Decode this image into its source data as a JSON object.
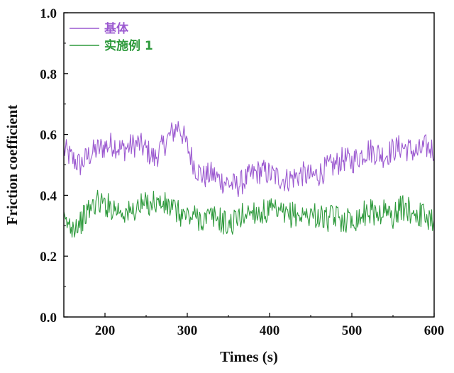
{
  "chart_data": {
    "type": "line",
    "xlabel": "Times (s)",
    "ylabel": "Friction coefficient",
    "xlim": [
      150,
      600
    ],
    "ylim": [
      0.0,
      1.0
    ],
    "x_ticks": [
      200,
      300,
      400,
      500,
      600
    ],
    "y_ticks": [
      0.0,
      0.2,
      0.4,
      0.6,
      0.8,
      1.0
    ],
    "x_tick_labels": [
      "200",
      "300",
      "400",
      "500",
      "600"
    ],
    "y_tick_labels": [
      "0.0",
      "0.2",
      "0.4",
      "0.6",
      "0.8",
      "1.0"
    ],
    "grid": false,
    "legend_position": "top-left",
    "x": [
      150,
      160,
      170,
      180,
      190,
      200,
      210,
      220,
      230,
      240,
      250,
      260,
      270,
      280,
      290,
      300,
      310,
      320,
      330,
      340,
      350,
      360,
      370,
      380,
      390,
      400,
      410,
      420,
      430,
      440,
      450,
      460,
      470,
      480,
      490,
      500,
      510,
      520,
      530,
      540,
      550,
      560,
      570,
      580,
      590,
      600
    ],
    "series": [
      {
        "name": "基体",
        "color": "#9b59d0",
        "values": [
          0.55,
          0.52,
          0.5,
          0.53,
          0.55,
          0.56,
          0.57,
          0.55,
          0.56,
          0.57,
          0.55,
          0.52,
          0.56,
          0.6,
          0.63,
          0.56,
          0.49,
          0.46,
          0.47,
          0.45,
          0.44,
          0.43,
          0.45,
          0.47,
          0.48,
          0.47,
          0.46,
          0.45,
          0.46,
          0.47,
          0.46,
          0.47,
          0.49,
          0.5,
          0.52,
          0.51,
          0.53,
          0.55,
          0.54,
          0.53,
          0.55,
          0.56,
          0.55,
          0.54,
          0.56,
          0.55
        ]
      },
      {
        "name": "实施例 1",
        "color": "#2e9a3c",
        "values": [
          0.31,
          0.3,
          0.31,
          0.35,
          0.38,
          0.37,
          0.36,
          0.35,
          0.34,
          0.36,
          0.37,
          0.38,
          0.37,
          0.36,
          0.34,
          0.33,
          0.33,
          0.32,
          0.33,
          0.32,
          0.3,
          0.32,
          0.34,
          0.35,
          0.34,
          0.35,
          0.34,
          0.33,
          0.34,
          0.33,
          0.34,
          0.33,
          0.32,
          0.33,
          0.32,
          0.32,
          0.33,
          0.35,
          0.34,
          0.35,
          0.33,
          0.36,
          0.35,
          0.34,
          0.33,
          0.32
        ]
      }
    ]
  }
}
